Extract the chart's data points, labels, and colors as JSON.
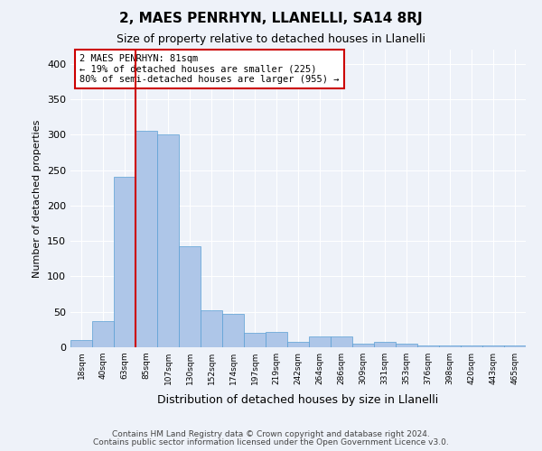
{
  "title": "2, MAES PENRHYN, LLANELLI, SA14 8RJ",
  "subtitle": "Size of property relative to detached houses in Llanelli",
  "xlabel": "Distribution of detached houses by size in Llanelli",
  "ylabel": "Number of detached properties",
  "footer_line1": "Contains HM Land Registry data © Crown copyright and database right 2024.",
  "footer_line2": "Contains public sector information licensed under the Open Government Licence v3.0.",
  "bin_labels": [
    "18sqm",
    "40sqm",
    "63sqm",
    "85sqm",
    "107sqm",
    "130sqm",
    "152sqm",
    "174sqm",
    "197sqm",
    "219sqm",
    "242sqm",
    "264sqm",
    "286sqm",
    "309sqm",
    "331sqm",
    "353sqm",
    "376sqm",
    "398sqm",
    "420sqm",
    "443sqm",
    "465sqm"
  ],
  "bar_values": [
    10,
    37,
    240,
    305,
    300,
    142,
    52,
    47,
    20,
    22,
    8,
    15,
    15,
    5,
    8,
    5,
    3,
    2,
    2,
    2,
    2
  ],
  "bar_color": "#aec6e8",
  "bar_edge_color": "#5a9fd4",
  "property_label": "2 MAES PENRHYN: 81sqm",
  "annotation_line1": "← 19% of detached houses are smaller (225)",
  "annotation_line2": "80% of semi-detached houses are larger (955) →",
  "vline_color": "#cc0000",
  "vline_x": 2.5,
  "ylim": [
    0,
    420
  ],
  "yticks": [
    0,
    50,
    100,
    150,
    200,
    250,
    300,
    350,
    400
  ],
  "background_color": "#eef2f9",
  "grid_color": "#ffffff"
}
